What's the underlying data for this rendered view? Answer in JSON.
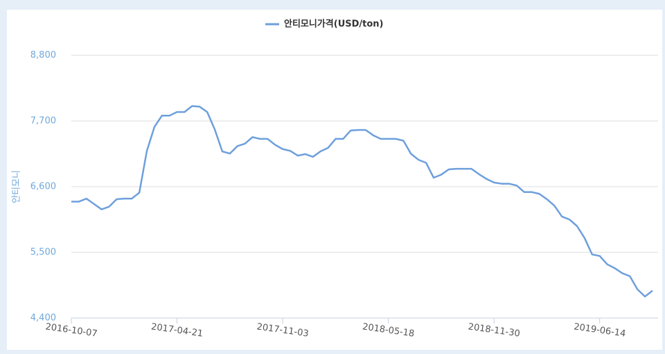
{
  "chart_data": {
    "type": "line",
    "legend": "안티모니가격(USD/ton)",
    "y_label": "안티모니",
    "categories": [
      "2016-10-07",
      null,
      null,
      null,
      null,
      null,
      null,
      null,
      null,
      null,
      null,
      null,
      null,
      null,
      "2017-04-21",
      null,
      null,
      null,
      null,
      null,
      null,
      null,
      null,
      null,
      null,
      null,
      null,
      null,
      "2017-11-03",
      null,
      null,
      null,
      null,
      null,
      null,
      null,
      null,
      null,
      null,
      null,
      null,
      null,
      "2018-05-18",
      null,
      null,
      null,
      null,
      null,
      null,
      null,
      null,
      null,
      null,
      null,
      null,
      null,
      "2018-11-30",
      null,
      null,
      null,
      null,
      null,
      null,
      null,
      null,
      null,
      null,
      null,
      null,
      null,
      "2019-06-14",
      null,
      null,
      null,
      null,
      null,
      null,
      null
    ],
    "series": [
      {
        "name": "안티모니가격(USD/ton)",
        "color": "#6d9fdc",
        "values": [
          6350,
          6350,
          6400,
          6310,
          6220,
          6265,
          6390,
          6400,
          6400,
          6500,
          7200,
          7600,
          7790,
          7790,
          7850,
          7850,
          7950,
          7940,
          7850,
          7560,
          7190,
          7155,
          7280,
          7320,
          7430,
          7400,
          7400,
          7300,
          7230,
          7200,
          7120,
          7145,
          7100,
          7190,
          7250,
          7400,
          7400,
          7540,
          7550,
          7550,
          7460,
          7400,
          7400,
          7400,
          7370,
          7150,
          7050,
          7000,
          6750,
          6800,
          6890,
          6900,
          6900,
          6900,
          6810,
          6730,
          6670,
          6650,
          6650,
          6620,
          6510,
          6510,
          6480,
          6390,
          6280,
          6100,
          6050,
          5940,
          5740,
          5465,
          5440,
          5300,
          5235,
          5150,
          5100,
          4880,
          4760,
          4860
        ]
      }
    ],
    "ylim": [
      4400,
      8800
    ],
    "yticks": [
      {
        "value": 4400,
        "label": "4,400"
      },
      {
        "value": 5500,
        "label": "5,500"
      },
      {
        "value": 6600,
        "label": "6,600"
      },
      {
        "value": 7700,
        "label": "7,700"
      },
      {
        "value": 8800,
        "label": "8,800"
      }
    ],
    "grid": true
  }
}
